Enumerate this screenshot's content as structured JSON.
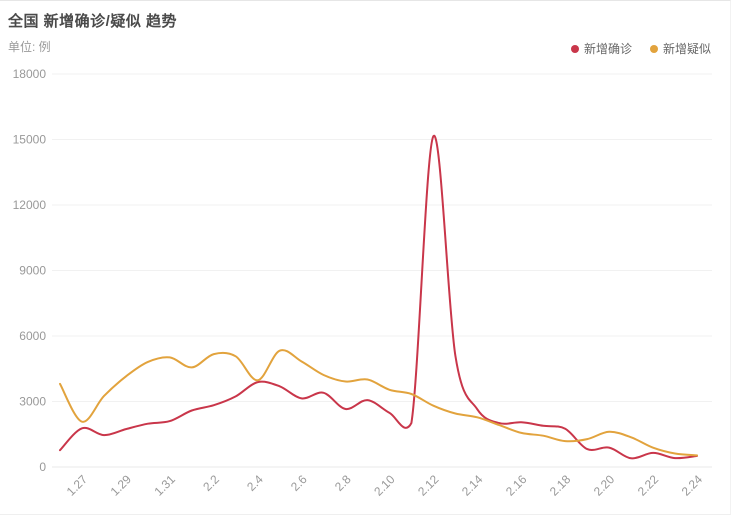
{
  "header": {
    "title": "全国 新增确诊/疑似 趋势",
    "unit_label": "单位: 例"
  },
  "chart_data": {
    "type": "line",
    "title": "全国 新增确诊/疑似 趋势",
    "unit": "例",
    "smooth": true,
    "grid": true,
    "legend_position": "top-right",
    "x": [
      "1.26",
      "1.27",
      "1.28",
      "1.29",
      "1.30",
      "1.31",
      "2.1",
      "2.2",
      "2.3",
      "2.4",
      "2.5",
      "2.6",
      "2.7",
      "2.8",
      "2.9",
      "2.10",
      "2.11",
      "2.12",
      "2.13",
      "2.14",
      "2.15",
      "2.16",
      "2.17",
      "2.18",
      "2.19",
      "2.20",
      "2.21",
      "2.22",
      "2.23",
      "2.24"
    ],
    "x_label_start": 1,
    "x_label_every": 2,
    "series": [
      {
        "name": "新增确诊",
        "color": "#c9364a",
        "values": [
          769,
          1771,
          1459,
          1737,
          1982,
          2102,
          2590,
          2829,
          3235,
          3887,
          3694,
          3143,
          3399,
          2656,
          3062,
          2478,
          2015,
          15152,
          5090,
          2641,
          2009,
          2048,
          1886,
          1749,
          820,
          889,
          397,
          648,
          409,
          508
        ]
      },
      {
        "name": "新增疑似",
        "color": "#e2a33d",
        "values": [
          3806,
          2077,
          3248,
          4148,
          4812,
          5019,
          4562,
          5173,
          5072,
          3971,
          5328,
          4833,
          4214,
          3916,
          4008,
          3536,
          3342,
          2807,
          2450,
          2277,
          1918,
          1563,
          1432,
          1185,
          1277,
          1614,
          1361,
          882,
          620,
          530
        ]
      }
    ],
    "ylim": [
      0,
      18000
    ],
    "y_ticks": [
      0,
      3000,
      6000,
      9000,
      12000,
      15000,
      18000
    ],
    "xlabel": "",
    "ylabel": "单位: 例"
  },
  "colors": {
    "grid_line": "#f1f1f1",
    "axis_zero_line": "#e8e8e8",
    "axis_text": "#999999",
    "title_text": "#4a4a4a",
    "legend_text": "#666666",
    "background": "#ffffff"
  }
}
